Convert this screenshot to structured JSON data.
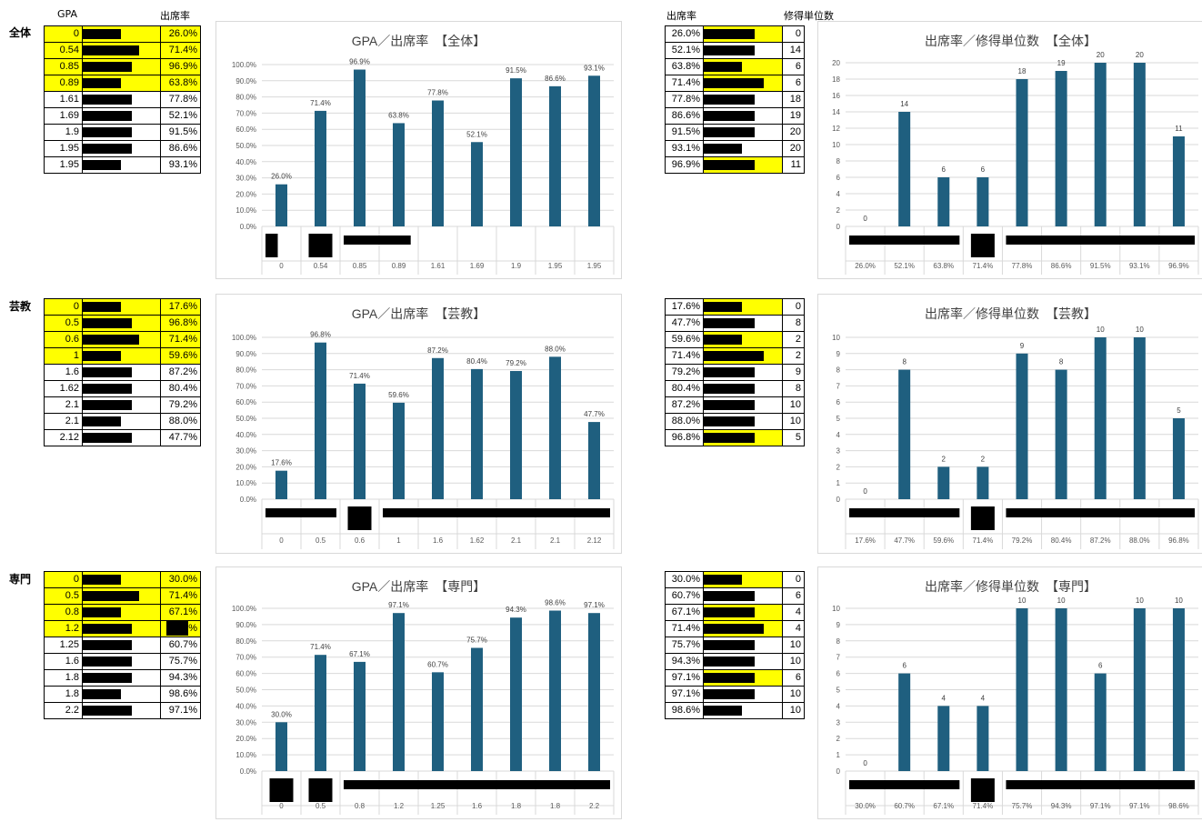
{
  "headers": {
    "gpa": "GPA",
    "attendance": "出席率",
    "attendance_right": "出席率",
    "credits": "修得単位数"
  },
  "groups": [
    {
      "label": "全体",
      "left_table": [
        {
          "gpa": "0",
          "rate": "26.0%",
          "hl": true
        },
        {
          "gpa": "0.54",
          "rate": "71.4%",
          "hl": true
        },
        {
          "gpa": "0.85",
          "rate": "96.9%",
          "hl": true
        },
        {
          "gpa": "0.89",
          "rate": "63.8%",
          "hl": true
        },
        {
          "gpa": "1.61",
          "rate": "77.8%",
          "hl": false
        },
        {
          "gpa": "1.69",
          "rate": "52.1%",
          "hl": false
        },
        {
          "gpa": "1.9",
          "rate": "91.5%",
          "hl": false
        },
        {
          "gpa": "1.95",
          "rate": "86.6%",
          "hl": false
        },
        {
          "gpa": "1.95",
          "rate": "93.1%",
          "hl": false
        }
      ],
      "right_table": [
        {
          "rate": "26.0%",
          "credits": "0",
          "hl": true
        },
        {
          "rate": "52.1%",
          "credits": "14",
          "hl": false
        },
        {
          "rate": "63.8%",
          "credits": "6",
          "hl": true
        },
        {
          "rate": "71.4%",
          "credits": "6",
          "hl": true
        },
        {
          "rate": "77.8%",
          "credits": "18",
          "hl": false
        },
        {
          "rate": "86.6%",
          "credits": "19",
          "hl": false
        },
        {
          "rate": "91.5%",
          "credits": "20",
          "hl": false
        },
        {
          "rate": "93.1%",
          "credits": "20",
          "hl": false
        },
        {
          "rate": "96.9%",
          "credits": "11",
          "hl": true
        }
      ]
    },
    {
      "label": "芸教",
      "left_table": [
        {
          "gpa": "0",
          "rate": "17.6%",
          "hl": true
        },
        {
          "gpa": "0.5",
          "rate": "96.8%",
          "hl": true
        },
        {
          "gpa": "0.6",
          "rate": "71.4%",
          "hl": true
        },
        {
          "gpa": "1",
          "rate": "59.6%",
          "hl": true
        },
        {
          "gpa": "1.6",
          "rate": "87.2%",
          "hl": false
        },
        {
          "gpa": "1.62",
          "rate": "80.4%",
          "hl": false
        },
        {
          "gpa": "2.1",
          "rate": "79.2%",
          "hl": false
        },
        {
          "gpa": "2.1",
          "rate": "88.0%",
          "hl": false
        },
        {
          "gpa": "2.12",
          "rate": "47.7%",
          "hl": false
        }
      ],
      "right_table": [
        {
          "rate": "17.6%",
          "credits": "0",
          "hl": true
        },
        {
          "rate": "47.7%",
          "credits": "8",
          "hl": false
        },
        {
          "rate": "59.6%",
          "credits": "2",
          "hl": true
        },
        {
          "rate": "71.4%",
          "credits": "2",
          "hl": true
        },
        {
          "rate": "79.2%",
          "credits": "9",
          "hl": false
        },
        {
          "rate": "80.4%",
          "credits": "8",
          "hl": false
        },
        {
          "rate": "87.2%",
          "credits": "10",
          "hl": false
        },
        {
          "rate": "88.0%",
          "credits": "10",
          "hl": false
        },
        {
          "rate": "96.8%",
          "credits": "5",
          "hl": true
        }
      ]
    },
    {
      "label": "専門",
      "left_table": [
        {
          "gpa": "0",
          "rate": "30.0%",
          "hl": true
        },
        {
          "gpa": "0.5",
          "rate": "71.4%",
          "hl": true
        },
        {
          "gpa": "0.8",
          "rate": "67.1%",
          "hl": true
        },
        {
          "gpa": "1.2",
          "rate": "%",
          "hl": true
        },
        {
          "gpa": "1.25",
          "rate": "60.7%",
          "hl": false
        },
        {
          "gpa": "1.6",
          "rate": "75.7%",
          "hl": false
        },
        {
          "gpa": "1.8",
          "rate": "94.3%",
          "hl": false
        },
        {
          "gpa": "1.8",
          "rate": "98.6%",
          "hl": false
        },
        {
          "gpa": "2.2",
          "rate": "97.1%",
          "hl": false
        }
      ],
      "right_table": [
        {
          "rate": "30.0%",
          "credits": "0",
          "hl": true
        },
        {
          "rate": "60.7%",
          "credits": "6",
          "hl": false
        },
        {
          "rate": "67.1%",
          "credits": "4",
          "hl": true
        },
        {
          "rate": "71.4%",
          "credits": "4",
          "hl": true
        },
        {
          "rate": "75.7%",
          "credits": "10",
          "hl": false
        },
        {
          "rate": "94.3%",
          "credits": "10",
          "hl": false
        },
        {
          "rate": "97.1%",
          "credits": "6",
          "hl": true
        },
        {
          "rate": "97.1%",
          "credits": "10",
          "hl": false
        },
        {
          "rate": "98.6%",
          "credits": "10",
          "hl": false
        }
      ]
    }
  ],
  "colors": {
    "bar": "#1f5f7f",
    "highlight": "#ffff00",
    "grid": "#d9d9d9"
  },
  "chart_data": [
    {
      "type": "bar",
      "title": "GPA／出席率　【全体】",
      "categories": [
        "0",
        "0.54",
        "0.85",
        "0.89",
        "1.61",
        "1.69",
        "1.9",
        "1.95",
        "1.95"
      ],
      "values": [
        26.0,
        71.4,
        96.9,
        63.8,
        77.8,
        52.1,
        91.5,
        86.6,
        93.1
      ],
      "value_labels": [
        "26.0%",
        "71.4%",
        "96.9%",
        "63.8%",
        "77.8%",
        "52.1%",
        "91.5%",
        "86.6%",
        "93.1%"
      ],
      "ylim": [
        0,
        100
      ],
      "yticks": [
        "0.0%",
        "10.0%",
        "20.0%",
        "30.0%",
        "40.0%",
        "50.0%",
        "60.0%",
        "70.0%",
        "80.0%",
        "90.0%",
        "100.0%"
      ],
      "grid": true
    },
    {
      "type": "bar",
      "title": "出席率／修得単位数　【全体】",
      "categories": [
        "26.0%",
        "52.1%",
        "63.8%",
        "71.4%",
        "77.8%",
        "86.6%",
        "91.5%",
        "93.1%",
        "96.9%"
      ],
      "values": [
        0,
        14,
        6,
        6,
        18,
        19,
        20,
        20,
        11
      ],
      "value_labels": [
        "0",
        "14",
        "6",
        "6",
        "18",
        "19",
        "20",
        "20",
        "11"
      ],
      "ylim": [
        0,
        20
      ],
      "yticks": [
        "0",
        "2",
        "4",
        "6",
        "8",
        "10",
        "12",
        "14",
        "16",
        "18",
        "20"
      ],
      "grid": true
    },
    {
      "type": "bar",
      "title": "GPA／出席率　【芸教】",
      "categories": [
        "0",
        "0.5",
        "0.6",
        "1",
        "1.6",
        "1.62",
        "2.1",
        "2.1",
        "2.12"
      ],
      "values": [
        17.6,
        96.8,
        71.4,
        59.6,
        87.2,
        80.4,
        79.2,
        88.0,
        47.7
      ],
      "value_labels": [
        "17.6%",
        "96.8%",
        "71.4%",
        "59.6%",
        "87.2%",
        "80.4%",
        "79.2%",
        "88.0%",
        "47.7%"
      ],
      "ylim": [
        0,
        100
      ],
      "yticks": [
        "0.0%",
        "10.0%",
        "20.0%",
        "30.0%",
        "40.0%",
        "50.0%",
        "60.0%",
        "70.0%",
        "80.0%",
        "90.0%",
        "100.0%"
      ],
      "grid": true
    },
    {
      "type": "bar",
      "title": "出席率／修得単位数　【芸教】",
      "categories": [
        "17.6%",
        "47.7%",
        "59.6%",
        "71.4%",
        "79.2%",
        "80.4%",
        "87.2%",
        "88.0%",
        "96.8%"
      ],
      "values": [
        0,
        8,
        2,
        2,
        9,
        8,
        10,
        10,
        5
      ],
      "value_labels": [
        "0",
        "8",
        "2",
        "2",
        "9",
        "8",
        "10",
        "10",
        "5"
      ],
      "ylim": [
        0,
        10
      ],
      "yticks": [
        "0",
        "1",
        "2",
        "3",
        "4",
        "5",
        "6",
        "7",
        "8",
        "9",
        "10"
      ],
      "grid": true
    },
    {
      "type": "bar",
      "title": "GPA／出席率　【専門】",
      "categories": [
        "0",
        "0.5",
        "0.8",
        "1.2",
        "1.25",
        "1.6",
        "1.8",
        "1.8",
        "2.2"
      ],
      "values": [
        30.0,
        71.4,
        67.1,
        97.1,
        60.7,
        75.7,
        94.3,
        98.6,
        97.1
      ],
      "value_labels": [
        "30.0%",
        "71.4%",
        "67.1%",
        "97.1%",
        "60.7%",
        "75.7%",
        "94.3%",
        "98.6%",
        "97.1%"
      ],
      "ylim": [
        0,
        100
      ],
      "yticks": [
        "0.0%",
        "10.0%",
        "20.0%",
        "30.0%",
        "40.0%",
        "50.0%",
        "60.0%",
        "70.0%",
        "80.0%",
        "90.0%",
        "100.0%"
      ],
      "grid": true
    },
    {
      "type": "bar",
      "title": "出席率／修得単位数　【専門】",
      "categories": [
        "30.0%",
        "60.7%",
        "67.1%",
        "71.4%",
        "75.7%",
        "94.3%",
        "97.1%",
        "97.1%",
        "98.6%"
      ],
      "values": [
        0,
        6,
        4,
        4,
        10,
        10,
        6,
        10,
        10
      ],
      "value_labels": [
        "0",
        "6",
        "4",
        "4",
        "10",
        "10",
        "6",
        "10",
        "10"
      ],
      "ylim": [
        0,
        10
      ],
      "yticks": [
        "0",
        "1",
        "2",
        "3",
        "4",
        "5",
        "6",
        "7",
        "8",
        "9",
        "10"
      ],
      "grid": true
    }
  ]
}
